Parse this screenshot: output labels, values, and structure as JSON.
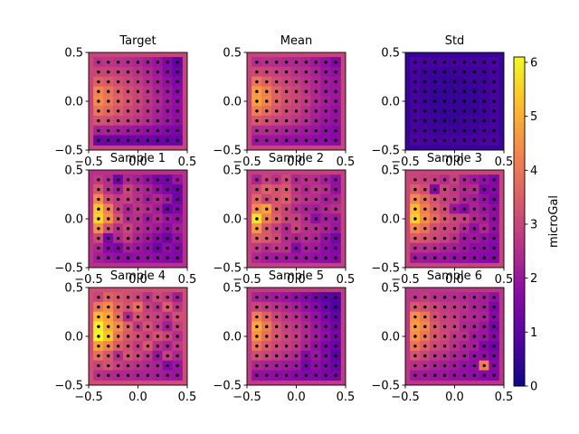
{
  "figure": {
    "background": "#ffffff",
    "colormap": "plasma"
  },
  "chart_data": [
    {
      "type": "heatmap",
      "title": "Target",
      "xlim": [
        -0.5,
        0.5
      ],
      "ylim": [
        -0.5,
        0.5
      ],
      "xticks": [
        "-0.5",
        "0.0",
        "0.5"
      ],
      "yticks": [
        "-0.5",
        "0.0",
        "0.5"
      ],
      "grid": {
        "x": [
          -0.4,
          -0.3,
          -0.2,
          -0.1,
          0.0,
          0.1,
          0.2,
          0.3,
          0.4
        ],
        "y": [
          0.4,
          0.3,
          0.2,
          0.1,
          0.0,
          -0.1,
          -0.2,
          -0.3,
          -0.4
        ]
      },
      "values": [
        [
          2.6,
          2.7,
          2.6,
          2.5,
          2.4,
          2.2,
          2.0,
          1.6,
          1.1
        ],
        [
          3.0,
          3.0,
          2.9,
          2.8,
          2.6,
          2.4,
          2.1,
          1.7,
          1.3
        ],
        [
          3.6,
          3.4,
          3.2,
          3.0,
          2.8,
          2.5,
          2.2,
          1.9,
          1.5
        ],
        [
          4.3,
          3.9,
          3.5,
          3.2,
          3.0,
          2.7,
          2.3,
          2.0,
          1.7
        ],
        [
          4.4,
          4.0,
          3.6,
          3.3,
          3.0,
          2.7,
          2.4,
          2.1,
          1.8
        ],
        [
          4.0,
          3.7,
          3.4,
          3.1,
          2.9,
          2.6,
          2.3,
          2.0,
          1.8
        ],
        [
          3.3,
          3.2,
          3.0,
          2.9,
          2.7,
          2.5,
          2.2,
          2.0,
          1.8
        ],
        [
          2.3,
          2.3,
          2.2,
          2.1,
          2.0,
          1.9,
          1.8,
          1.6,
          1.5
        ],
        [
          1.3,
          1.3,
          1.3,
          1.3,
          1.3,
          1.3,
          1.2,
          1.2,
          1.2
        ]
      ]
    },
    {
      "type": "heatmap",
      "title": "Mean",
      "xlim": [
        -0.5,
        0.5
      ],
      "ylim": [
        -0.5,
        0.5
      ],
      "xticks": [
        "-0.5",
        "0.0",
        "0.5"
      ],
      "yticks": [
        "-0.5",
        "0.0",
        "0.5"
      ],
      "grid": {
        "x": [
          -0.4,
          -0.3,
          -0.2,
          -0.1,
          0.0,
          0.1,
          0.2,
          0.3,
          0.4
        ],
        "y": [
          0.4,
          0.3,
          0.2,
          0.1,
          0.0,
          -0.1,
          -0.2,
          -0.3,
          -0.4
        ]
      },
      "values": [
        [
          2.5,
          2.6,
          2.5,
          2.4,
          2.4,
          2.3,
          2.1,
          1.9,
          1.6
        ],
        [
          3.1,
          3.0,
          2.9,
          2.8,
          2.6,
          2.5,
          2.3,
          2.0,
          1.9
        ],
        [
          4.0,
          3.6,
          3.2,
          3.0,
          2.8,
          2.6,
          2.4,
          2.1,
          2.0
        ],
        [
          4.7,
          4.2,
          3.6,
          3.2,
          3.0,
          2.7,
          2.4,
          2.1,
          2.0
        ],
        [
          4.8,
          4.3,
          3.6,
          3.2,
          3.0,
          2.8,
          2.4,
          2.2,
          2.0
        ],
        [
          4.2,
          3.8,
          3.4,
          3.1,
          2.9,
          2.6,
          2.3,
          2.1,
          1.9
        ],
        [
          3.4,
          3.2,
          3.0,
          2.9,
          2.7,
          2.5,
          2.2,
          2.0,
          1.9
        ],
        [
          2.5,
          2.5,
          2.4,
          2.3,
          2.2,
          2.1,
          2.0,
          1.8,
          1.7
        ],
        [
          2.0,
          2.0,
          2.0,
          1.9,
          1.9,
          1.9,
          1.8,
          1.8,
          1.7
        ]
      ]
    },
    {
      "type": "heatmap",
      "title": "Std",
      "xlim": [
        -0.5,
        0.5
      ],
      "ylim": [
        -0.5,
        0.5
      ],
      "xticks": [
        "-0.5",
        "0.0",
        "0.5"
      ],
      "yticks": [
        "-0.5",
        "0.0",
        "0.5"
      ],
      "grid": {
        "x": [
          -0.4,
          -0.3,
          -0.2,
          -0.1,
          0.0,
          0.1,
          0.2,
          0.3,
          0.4
        ],
        "y": [
          0.4,
          0.3,
          0.2,
          0.1,
          0.0,
          -0.1,
          -0.2,
          -0.3,
          -0.4
        ]
      },
      "values": [
        [
          0.8,
          0.7,
          0.7,
          0.7,
          0.7,
          0.7,
          0.7,
          0.7,
          0.8
        ],
        [
          0.7,
          0.6,
          0.6,
          0.5,
          0.6,
          0.6,
          0.6,
          0.6,
          0.7
        ],
        [
          0.7,
          0.6,
          0.5,
          0.5,
          0.5,
          0.5,
          0.6,
          0.6,
          0.7
        ],
        [
          0.7,
          0.6,
          0.5,
          0.5,
          0.5,
          0.5,
          0.5,
          0.6,
          0.7
        ],
        [
          0.7,
          0.6,
          0.5,
          0.5,
          0.5,
          0.5,
          0.5,
          0.6,
          0.7
        ],
        [
          0.7,
          0.6,
          0.5,
          0.5,
          0.5,
          0.5,
          0.5,
          0.6,
          0.7
        ],
        [
          0.7,
          0.6,
          0.6,
          0.5,
          0.5,
          0.6,
          0.6,
          0.6,
          0.7
        ],
        [
          0.7,
          0.7,
          0.6,
          0.6,
          0.6,
          0.6,
          0.6,
          0.7,
          0.7
        ],
        [
          0.8,
          0.7,
          0.7,
          0.7,
          0.7,
          0.7,
          0.7,
          0.8,
          0.8
        ]
      ]
    },
    {
      "type": "heatmap",
      "title": "Sample 1",
      "xlim": [
        -0.5,
        0.5
      ],
      "ylim": [
        -0.5,
        0.5
      ],
      "xticks": [
        "-0.5",
        "0.0",
        "0.5"
      ],
      "yticks": [
        "-0.5",
        "0.0",
        "0.5"
      ],
      "grid": {
        "x": [
          -0.4,
          -0.3,
          -0.2,
          -0.1,
          0.0,
          0.1,
          0.2,
          0.3,
          0.4
        ],
        "y": [
          0.4,
          0.3,
          0.2,
          0.1,
          0.0,
          -0.1,
          -0.2,
          -0.3,
          -0.4
        ]
      },
      "values": [
        [
          2.8,
          2.5,
          1.3,
          2.4,
          2.2,
          1.9,
          1.5,
          1.4,
          2.0
        ],
        [
          3.4,
          2.6,
          2.2,
          3.0,
          2.5,
          2.3,
          1.9,
          1.5,
          1.3
        ],
        [
          4.4,
          3.2,
          2.8,
          2.9,
          2.6,
          2.2,
          2.4,
          2.1,
          1.3
        ],
        [
          5.4,
          4.2,
          2.9,
          2.3,
          2.7,
          2.5,
          2.2,
          1.2,
          1.6
        ],
        [
          5.6,
          4.5,
          3.3,
          2.5,
          2.6,
          2.1,
          2.4,
          2.0,
          1.9
        ],
        [
          4.5,
          3.3,
          2.6,
          3.0,
          2.5,
          2.3,
          2.1,
          1.8,
          2.2
        ],
        [
          3.1,
          1.5,
          2.4,
          2.8,
          2.3,
          2.0,
          1.7,
          1.3,
          1.9
        ],
        [
          2.4,
          1.7,
          1.5,
          2.2,
          2.0,
          1.8,
          1.3,
          1.8,
          1.6
        ],
        [
          2.2,
          2.0,
          1.9,
          1.8,
          1.9,
          1.9,
          1.8,
          1.7,
          1.6
        ]
      ]
    },
    {
      "type": "heatmap",
      "title": "Sample 2",
      "xlim": [
        -0.5,
        0.5
      ],
      "ylim": [
        -0.5,
        0.5
      ],
      "xticks": [
        "-0.5",
        "0.0",
        "0.5"
      ],
      "yticks": [
        "-0.5",
        "0.0",
        "0.5"
      ],
      "grid": {
        "x": [
          -0.4,
          -0.3,
          -0.2,
          -0.1,
          0.0,
          0.1,
          0.2,
          0.3,
          0.4
        ],
        "y": [
          0.4,
          0.3,
          0.2,
          0.1,
          0.0,
          -0.1,
          -0.2,
          -0.3,
          -0.4
        ]
      },
      "values": [
        [
          2.3,
          2.9,
          2.6,
          3.1,
          2.4,
          2.6,
          2.5,
          2.2,
          1.9
        ],
        [
          3.1,
          3.6,
          3.3,
          3.4,
          2.7,
          2.4,
          2.7,
          2.5,
          1.9
        ],
        [
          3.7,
          3.0,
          3.3,
          3.5,
          2.8,
          2.6,
          2.5,
          2.2,
          2.3
        ],
        [
          4.4,
          4.8,
          3.4,
          3.0,
          2.5,
          2.3,
          2.2,
          2.4,
          2.6
        ],
        [
          5.8,
          4.2,
          3.6,
          3.0,
          2.9,
          2.5,
          1.8,
          2.2,
          2.1
        ],
        [
          4.6,
          3.4,
          2.9,
          2.4,
          3.0,
          2.6,
          2.5,
          2.3,
          2.0
        ],
        [
          3.6,
          3.4,
          3.1,
          2.5,
          2.3,
          2.5,
          2.3,
          1.9,
          1.4
        ],
        [
          2.8,
          2.5,
          2.7,
          2.6,
          1.7,
          2.2,
          2.1,
          1.8,
          1.6
        ],
        [
          2.4,
          2.2,
          2.1,
          2.1,
          2.0,
          2.0,
          1.9,
          1.8,
          1.7
        ]
      ]
    },
    {
      "type": "heatmap",
      "title": "Sample 3",
      "xlim": [
        -0.5,
        0.5
      ],
      "ylim": [
        -0.5,
        0.5
      ],
      "xticks": [
        "-0.5",
        "0.0",
        "0.5"
      ],
      "yticks": [
        "-0.5",
        "0.0",
        "0.5"
      ],
      "grid": {
        "x": [
          -0.4,
          -0.3,
          -0.2,
          -0.1,
          0.0,
          0.1,
          0.2,
          0.3,
          0.4
        ],
        "y": [
          0.4,
          0.3,
          0.2,
          0.1,
          0.0,
          -0.1,
          -0.2,
          -0.3,
          -0.4
        ]
      },
      "values": [
        [
          3.0,
          2.9,
          2.8,
          2.5,
          2.9,
          2.3,
          2.1,
          1.9,
          1.6
        ],
        [
          3.5,
          3.2,
          1.6,
          3.0,
          2.7,
          2.4,
          2.5,
          1.5,
          1.7
        ],
        [
          4.4,
          3.8,
          3.3,
          2.9,
          2.8,
          2.3,
          2.2,
          1.9,
          1.5
        ],
        [
          5.2,
          4.2,
          3.5,
          3.1,
          2.0,
          1.7,
          2.3,
          2.0,
          1.8
        ],
        [
          5.5,
          4.4,
          3.8,
          3.3,
          3.0,
          2.9,
          2.4,
          2.2,
          1.8
        ],
        [
          4.3,
          3.9,
          3.2,
          3.0,
          2.9,
          2.4,
          1.9,
          2.4,
          1.9
        ],
        [
          3.5,
          3.3,
          3.1,
          2.9,
          2.6,
          2.0,
          2.1,
          1.9,
          1.7
        ],
        [
          2.6,
          2.6,
          2.5,
          2.3,
          2.2,
          2.0,
          1.8,
          1.8,
          1.6
        ],
        [
          2.1,
          2.1,
          2.0,
          2.0,
          1.9,
          1.9,
          1.8,
          1.7,
          1.6
        ]
      ]
    },
    {
      "type": "heatmap",
      "title": "Sample 4",
      "xlim": [
        -0.5,
        0.5
      ],
      "ylim": [
        -0.5,
        0.5
      ],
      "xticks": [
        "-0.5",
        "0.0",
        "0.5"
      ],
      "yticks": [
        "-0.5",
        "0.0",
        "0.5"
      ],
      "grid": {
        "x": [
          -0.4,
          -0.3,
          -0.2,
          -0.1,
          0.0,
          0.1,
          0.2,
          0.3,
          0.4
        ],
        "y": [
          0.4,
          0.3,
          0.2,
          0.1,
          0.0,
          -0.1,
          -0.2,
          -0.3,
          -0.4
        ]
      },
      "values": [
        [
          3.0,
          3.6,
          3.4,
          3.2,
          3.0,
          2.6,
          3.1,
          2.8,
          2.2
        ],
        [
          4.0,
          4.4,
          3.6,
          3.3,
          3.9,
          2.9,
          2.6,
          3.5,
          2.7
        ],
        [
          5.2,
          4.8,
          3.8,
          2.4,
          3.3,
          3.0,
          2.9,
          2.6,
          3.2
        ],
        [
          6.0,
          5.0,
          4.4,
          3.6,
          2.7,
          3.3,
          2.8,
          2.2,
          2.9
        ],
        [
          6.1,
          5.4,
          4.0,
          3.4,
          3.2,
          2.9,
          3.3,
          3.0,
          2.5
        ],
        [
          4.8,
          4.3,
          3.5,
          3.2,
          2.8,
          3.4,
          2.6,
          2.3,
          2.8
        ],
        [
          3.9,
          3.4,
          2.5,
          3.3,
          3.0,
          2.7,
          2.0,
          2.9,
          2.4
        ],
        [
          3.0,
          3.3,
          2.9,
          2.7,
          2.6,
          2.4,
          2.3,
          1.7,
          2.0
        ],
        [
          2.6,
          2.5,
          2.4,
          2.4,
          2.3,
          2.3,
          2.2,
          2.1,
          2.0
        ]
      ]
    },
    {
      "type": "heatmap",
      "title": "Sample 5",
      "xlim": [
        -0.5,
        0.5
      ],
      "ylim": [
        -0.5,
        0.5
      ],
      "xticks": [
        "-0.5",
        "0.0",
        "0.5"
      ],
      "yticks": [
        "-0.5",
        "0.0",
        "0.5"
      ],
      "grid": {
        "x": [
          -0.4,
          -0.3,
          -0.2,
          -0.1,
          0.0,
          0.1,
          0.2,
          0.3,
          0.4
        ],
        "y": [
          0.4,
          0.3,
          0.2,
          0.1,
          0.0,
          -0.1,
          -0.2,
          -0.3,
          -0.4
        ]
      },
      "values": [
        [
          2.3,
          2.2,
          2.1,
          2.0,
          1.8,
          1.6,
          1.3,
          1.0,
          0.9
        ],
        [
          3.0,
          2.8,
          2.6,
          2.4,
          2.2,
          1.9,
          1.6,
          1.2,
          0.8
        ],
        [
          4.2,
          3.6,
          3.0,
          2.7,
          2.5,
          2.2,
          1.9,
          1.5,
          1.1
        ],
        [
          4.9,
          4.1,
          3.3,
          2.9,
          2.7,
          2.4,
          2.0,
          1.7,
          1.3
        ],
        [
          4.6,
          3.9,
          3.3,
          3.0,
          2.8,
          2.4,
          2.1,
          1.8,
          1.4
        ],
        [
          3.9,
          3.4,
          3.1,
          2.9,
          2.7,
          2.3,
          1.9,
          1.5,
          1.2
        ],
        [
          3.2,
          3.0,
          2.8,
          2.6,
          2.4,
          1.7,
          2.0,
          1.6,
          1.0
        ],
        [
          2.4,
          2.3,
          2.2,
          2.1,
          2.0,
          1.4,
          1.8,
          1.5,
          1.2
        ],
        [
          1.9,
          1.9,
          1.8,
          1.8,
          1.7,
          1.6,
          1.6,
          1.5,
          1.4
        ]
      ]
    },
    {
      "type": "heatmap",
      "title": "Sample 6",
      "xlim": [
        -0.5,
        0.5
      ],
      "ylim": [
        -0.5,
        0.5
      ],
      "xticks": [
        "-0.5",
        "0.0",
        "0.5"
      ],
      "yticks": [
        "-0.5",
        "0.0",
        "0.5"
      ],
      "grid": {
        "x": [
          -0.4,
          -0.3,
          -0.2,
          -0.1,
          0.0,
          0.1,
          0.2,
          0.3,
          0.4
        ],
        "y": [
          0.4,
          0.3,
          0.2,
          0.1,
          0.0,
          -0.1,
          -0.2,
          -0.3,
          -0.4
        ]
      },
      "values": [
        [
          2.7,
          2.8,
          2.6,
          2.5,
          2.5,
          2.4,
          2.3,
          2.2,
          1.9
        ],
        [
          3.4,
          3.2,
          3.0,
          2.8,
          2.7,
          2.6,
          2.3,
          2.2,
          1.5
        ],
        [
          4.5,
          4.0,
          3.2,
          2.9,
          2.8,
          2.5,
          2.4,
          2.3,
          1.7
        ],
        [
          4.7,
          4.3,
          3.4,
          3.0,
          2.9,
          2.4,
          2.3,
          2.0,
          1.4
        ],
        [
          4.5,
          4.0,
          3.3,
          3.1,
          2.7,
          2.6,
          2.1,
          2.0,
          1.6
        ],
        [
          4.0,
          3.5,
          3.1,
          2.9,
          2.6,
          2.3,
          2.2,
          1.6,
          1.3
        ],
        [
          3.3,
          3.0,
          2.7,
          2.6,
          2.3,
          2.2,
          1.9,
          1.8,
          1.5
        ],
        [
          2.6,
          2.5,
          2.3,
          2.2,
          2.1,
          1.9,
          1.8,
          4.2,
          1.7
        ],
        [
          2.1,
          2.1,
          2.0,
          2.0,
          1.9,
          1.9,
          1.8,
          1.7,
          1.6
        ]
      ]
    }
  ],
  "colorbar": {
    "label": "microGal",
    "vmin": 0,
    "vmax": 6.1,
    "ticks": [
      {
        "v": 0,
        "t": "0"
      },
      {
        "v": 1,
        "t": "1"
      },
      {
        "v": 2,
        "t": "2"
      },
      {
        "v": 3,
        "t": "3"
      },
      {
        "v": 4,
        "t": "4"
      },
      {
        "v": 5,
        "t": "5"
      },
      {
        "v": 6,
        "t": "6"
      }
    ]
  }
}
